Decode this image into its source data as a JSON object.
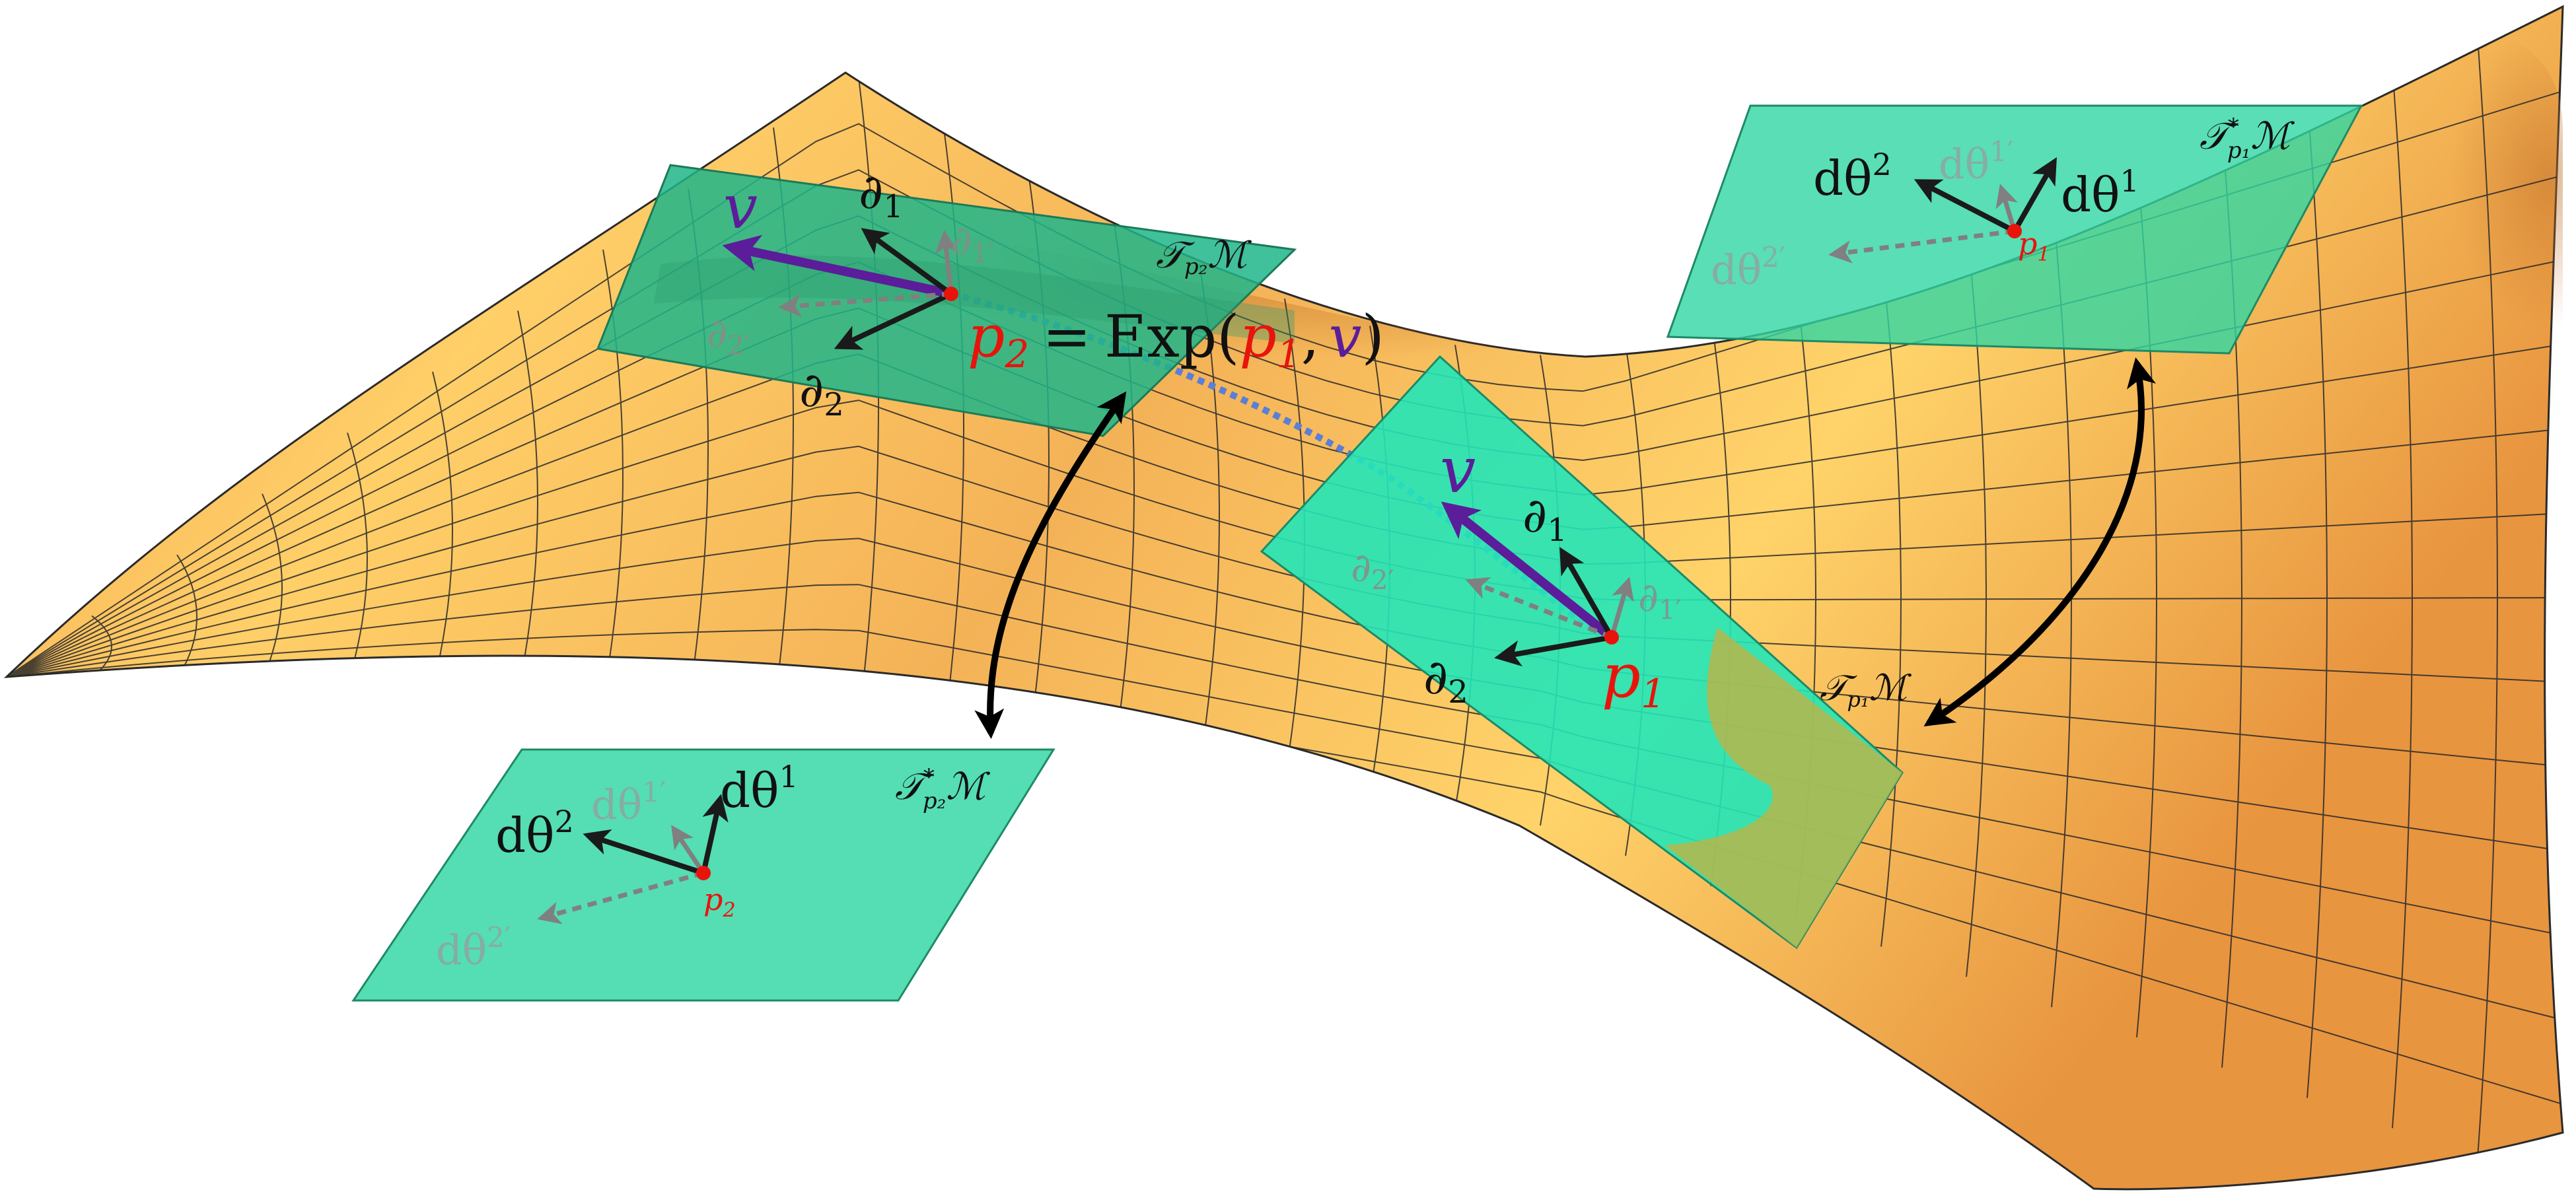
{
  "colors": {
    "surface_light": "#ffd36a",
    "surface_mid": "#f7b55a",
    "surface_dark": "#e08a3c",
    "grid_line": "#2a2a2a",
    "tangent_plane": "#2fd6a6",
    "cotangent_plane": "#3fd6a8",
    "plane_edge": "#2b8a66",
    "point": "#e8140c",
    "vector_v": "#5b1d9a",
    "basis_arrow": "#1a1a1a",
    "primed_arrow": "#7f7f7f",
    "geodesic": "#5b7fd6"
  },
  "labels": {
    "v_top": "v",
    "v_bottom": "v",
    "d1_top": "∂",
    "d1_top_sub": "1",
    "d1p_top": "∂",
    "d1p_top_sub": "1′",
    "d2_top": "∂",
    "d2_top_sub": "2",
    "d2p_top": "∂",
    "d2p_top_sub": "2′",
    "d1_bot": "∂",
    "d1_bot_sub": "1",
    "d1p_bot": "∂",
    "d1p_bot_sub": "1′",
    "d2_bot": "∂",
    "d2_bot_sub": "2",
    "d2p_bot": "∂",
    "d2p_bot_sub": "2′",
    "p2_main": "p",
    "p2_main_sub": "2",
    "p1_main": "p",
    "p1_main_sub": "1",
    "exp_eq": "=",
    "exp_fn": "Exp(",
    "exp_p": "p",
    "exp_p_sub": "1",
    "exp_comma": ",",
    "exp_v": "v",
    "exp_close": ")",
    "tp2": "𝒯",
    "tp2_sub": "p₂",
    "tp2_m": "ℳ",
    "tp1": "𝒯",
    "tp1_sub": "p₁",
    "tp1_m": "ℳ",
    "ctp1": "𝒯",
    "ctp1_sup": "*",
    "ctp1_sub": "p₁",
    "ctp1_m": "ℳ",
    "ctp2": "𝒯",
    "ctp2_sup": "*",
    "ctp2_sub": "p₂",
    "ctp2_m": "ℳ",
    "dth_text": "dθ",
    "dth1_sup": "1",
    "dth2_sup": "2",
    "dth1p_sup": "1′",
    "dth2p_sup": "2′",
    "p1_small": "p",
    "p1_small_sub": "1",
    "p2_small": "p",
    "p2_small_sub": "2"
  }
}
